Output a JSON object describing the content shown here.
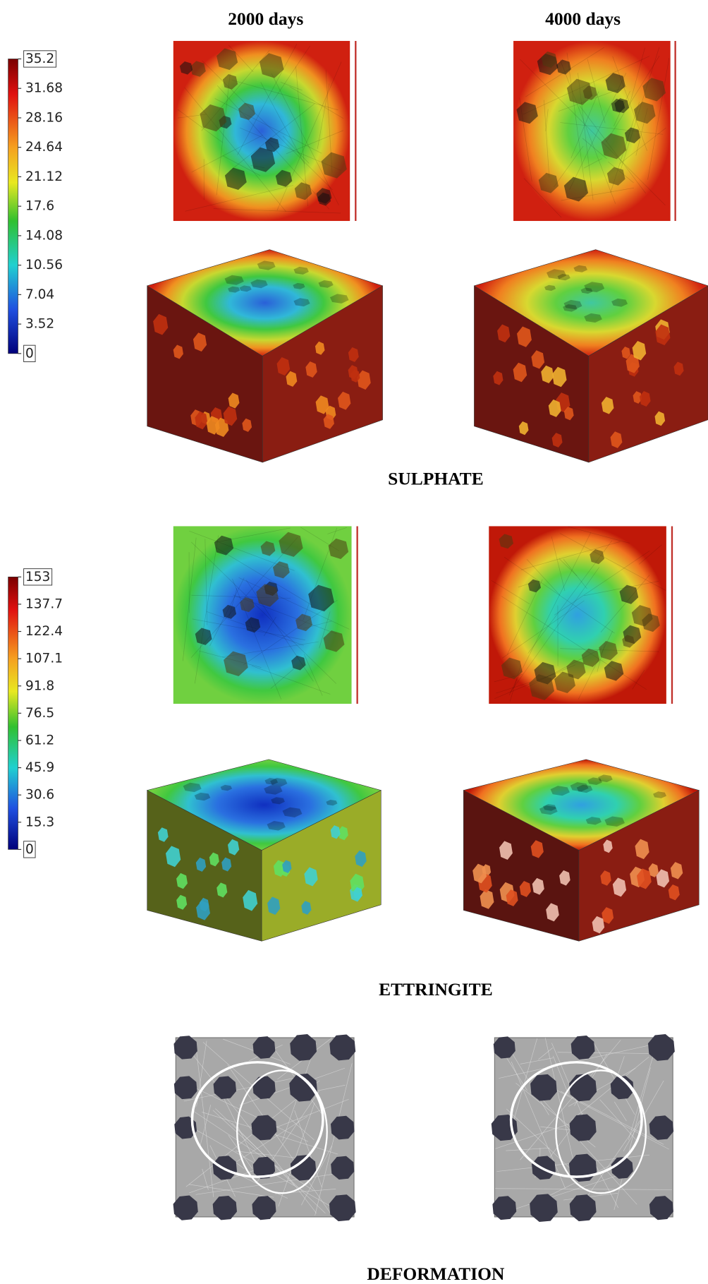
{
  "columns": [
    "2000 days",
    "4000 days"
  ],
  "sections": [
    {
      "label": "SULPHATE",
      "colorbar": {
        "ticks": [
          35.2,
          31.68,
          28.16,
          24.64,
          21.12,
          17.6,
          14.08,
          10.56,
          7.04,
          3.52,
          0
        ]
      }
    },
    {
      "label": "ETTRINGITE",
      "colorbar": {
        "ticks": [
          153,
          137.7,
          122.4,
          107.1,
          91.8,
          76.5,
          61.2,
          45.9,
          30.6,
          15.3,
          0
        ]
      }
    },
    {
      "label": "DEFORMATION"
    }
  ]
}
